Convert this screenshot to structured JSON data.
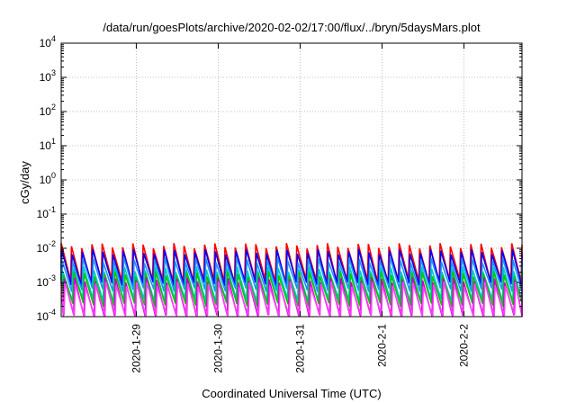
{
  "chart_data": {
    "type": "line",
    "title": "/data/run/goesPlots/archive/2020-02-02/17:00/flux/../bryn/5daysMars.plot",
    "xlabel": "Coordinated Universal Time (UTC)",
    "ylabel": "cGy/day",
    "y_scale": "log",
    "ylim": [
      0.0001,
      10000
    ],
    "y_ticks": [
      {
        "base": "10",
        "exp": "-4",
        "value": 0.0001
      },
      {
        "base": "10",
        "exp": "-3",
        "value": 0.001
      },
      {
        "base": "10",
        "exp": "-2",
        "value": 0.01
      },
      {
        "base": "10",
        "exp": "-1",
        "value": 0.1
      },
      {
        "base": "10",
        "exp": "0",
        "value": 1
      },
      {
        "base": "10",
        "exp": "1",
        "value": 10
      },
      {
        "base": "10",
        "exp": "2",
        "value": 100
      },
      {
        "base": "10",
        "exp": "3",
        "value": 1000
      },
      {
        "base": "10",
        "exp": "4",
        "value": 10000
      }
    ],
    "xlim": [
      "2020-01-28 02:00",
      "2020-02-02 17:00"
    ],
    "x_ticks": [
      "2020-1-29",
      "2020-1-30",
      "2020-1-31",
      "2020-2-1",
      "2020-2-2"
    ],
    "grid": true,
    "series": [
      {
        "color": "#ff0000",
        "peak": 0.012,
        "trough": 0.0011
      },
      {
        "color": "#0000ff",
        "peak": 0.008,
        "trough": 0.0009
      },
      {
        "color": "#1e90ff",
        "peak": 0.0045,
        "trough": 0.0006
      },
      {
        "color": "#00c8c8",
        "peak": 0.0025,
        "trough": 0.0003
      },
      {
        "color": "#00c800",
        "peak": 0.0018,
        "trough": 0.00022
      },
      {
        "color": "#c800c8",
        "peak": 0.0012,
        "trough": 0.0001
      },
      {
        "color": "#ff40ff",
        "peak": 0.0009,
        "trough": 0.0001
      }
    ]
  }
}
